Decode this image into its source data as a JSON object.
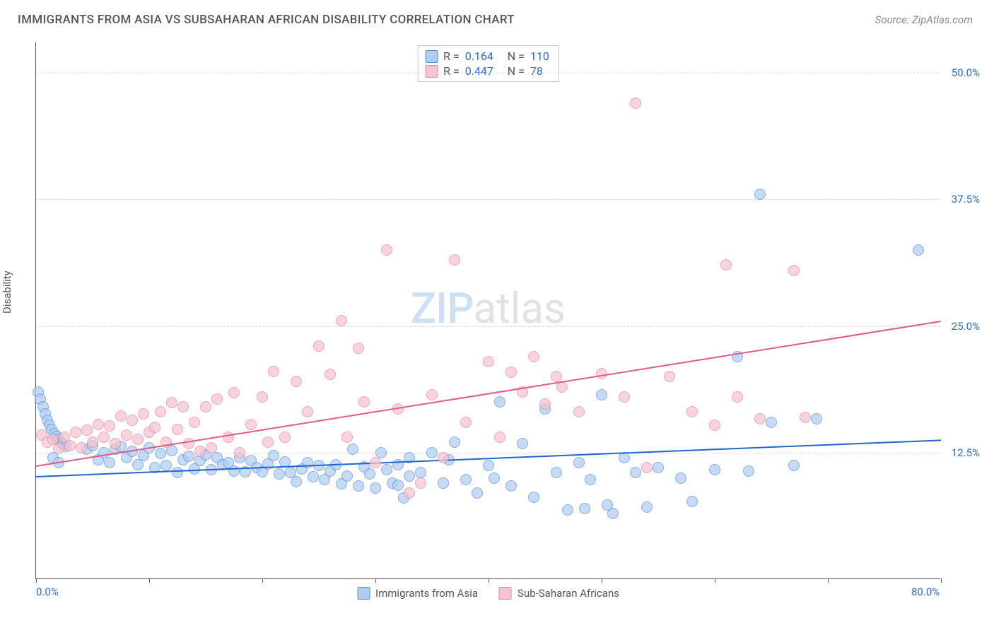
{
  "header": {
    "title": "IMMIGRANTS FROM ASIA VS SUBSAHARAN AFRICAN DISABILITY CORRELATION CHART",
    "source": "Source: ZipAtlas.com"
  },
  "chart": {
    "type": "scatter",
    "y_axis_label": "Disability",
    "watermark": {
      "part1": "ZIP",
      "part2": "atlas"
    },
    "background_color": "#ffffff",
    "grid_color": "#d8d8d8",
    "axis_color": "#555555",
    "label_color": "#2a6bd6",
    "xlim": [
      0,
      80
    ],
    "ylim": [
      0,
      53
    ],
    "x_ticks_minor": [
      0,
      10,
      20,
      30,
      40,
      50,
      60,
      70,
      80
    ],
    "x_tick_labels": [
      {
        "pos": 0,
        "label": "0.0%"
      },
      {
        "pos": 80,
        "label": "80.0%"
      }
    ],
    "y_gridlines": [
      12.5,
      25.0,
      37.5,
      50.0
    ],
    "y_tick_labels": [
      {
        "pos": 12.5,
        "label": "12.5%"
      },
      {
        "pos": 25.0,
        "label": "25.0%"
      },
      {
        "pos": 37.5,
        "label": "37.5%"
      },
      {
        "pos": 50.0,
        "label": "50.0%"
      }
    ],
    "series": [
      {
        "name": "Immigrants from Asia",
        "point_fill": "#b0cdf0",
        "point_stroke": "#5b8fd6",
        "point_opacity": 0.72,
        "point_radius": 8,
        "trend_color": "#1e66d0",
        "trend_y_start": 10.2,
        "trend_y_end": 13.8,
        "stats": {
          "R": "0.164",
          "N": "110"
        },
        "data": [
          [
            0.2,
            18.5
          ],
          [
            0.4,
            17.8
          ],
          [
            0.6,
            17.0
          ],
          [
            0.8,
            16.3
          ],
          [
            1.0,
            15.7
          ],
          [
            1.2,
            15.2
          ],
          [
            1.4,
            14.8
          ],
          [
            1.6,
            14.4
          ],
          [
            1.8,
            14.1
          ],
          [
            2.0,
            13.8
          ],
          [
            2.2,
            13.5
          ],
          [
            2.4,
            13.3
          ],
          [
            2.6,
            13.1
          ],
          [
            1.5,
            12.0
          ],
          [
            2.0,
            11.5
          ],
          [
            4.5,
            12.8
          ],
          [
            5.0,
            13.2
          ],
          [
            5.5,
            11.8
          ],
          [
            6.0,
            12.5
          ],
          [
            6.5,
            11.5
          ],
          [
            7.0,
            12.8
          ],
          [
            7.5,
            13.1
          ],
          [
            8.0,
            12.0
          ],
          [
            8.5,
            12.6
          ],
          [
            9.0,
            11.3
          ],
          [
            9.5,
            12.2
          ],
          [
            10.0,
            13.0
          ],
          [
            10.5,
            11.0
          ],
          [
            11.0,
            12.4
          ],
          [
            11.5,
            11.2
          ],
          [
            12.0,
            12.7
          ],
          [
            12.5,
            10.5
          ],
          [
            13.0,
            11.8
          ],
          [
            13.5,
            12.1
          ],
          [
            14.0,
            10.9
          ],
          [
            14.5,
            11.7
          ],
          [
            15.0,
            12.3
          ],
          [
            15.5,
            10.8
          ],
          [
            16.0,
            12.0
          ],
          [
            16.5,
            11.3
          ],
          [
            17.0,
            11.5
          ],
          [
            17.5,
            10.7
          ],
          [
            18.0,
            12.0
          ],
          [
            18.5,
            10.6
          ],
          [
            19.0,
            11.7
          ],
          [
            19.5,
            11.0
          ],
          [
            20.0,
            10.6
          ],
          [
            20.5,
            11.4
          ],
          [
            21.0,
            12.2
          ],
          [
            21.5,
            10.4
          ],
          [
            22.0,
            11.6
          ],
          [
            22.5,
            10.5
          ],
          [
            23.0,
            9.6
          ],
          [
            23.5,
            10.9
          ],
          [
            24.0,
            11.5
          ],
          [
            24.5,
            10.1
          ],
          [
            25.0,
            11.2
          ],
          [
            25.5,
            9.8
          ],
          [
            26.0,
            10.7
          ],
          [
            26.5,
            11.3
          ],
          [
            27.0,
            9.4
          ],
          [
            27.5,
            10.2
          ],
          [
            28.0,
            12.8
          ],
          [
            28.5,
            9.2
          ],
          [
            29.0,
            11.1
          ],
          [
            29.5,
            10.4
          ],
          [
            30.0,
            9.0
          ],
          [
            30.5,
            12.5
          ],
          [
            31.0,
            10.8
          ],
          [
            31.5,
            9.5
          ],
          [
            32.0,
            11.3
          ],
          [
            33.0,
            10.2
          ],
          [
            32.0,
            9.3
          ],
          [
            32.5,
            8.0
          ],
          [
            33.0,
            12.0
          ],
          [
            34.0,
            10.5
          ],
          [
            35.0,
            12.5
          ],
          [
            36.0,
            9.5
          ],
          [
            36.5,
            11.8
          ],
          [
            37.0,
            13.5
          ],
          [
            38.0,
            9.8
          ],
          [
            39.0,
            8.5
          ],
          [
            40.0,
            11.2
          ],
          [
            40.5,
            10.0
          ],
          [
            41.0,
            17.5
          ],
          [
            42.0,
            9.2
          ],
          [
            43.0,
            13.4
          ],
          [
            44.0,
            8.1
          ],
          [
            45.0,
            16.8
          ],
          [
            46.0,
            10.5
          ],
          [
            47.0,
            6.8
          ],
          [
            48.0,
            11.5
          ],
          [
            48.5,
            7.0
          ],
          [
            49.0,
            9.8
          ],
          [
            50.0,
            18.2
          ],
          [
            50.5,
            7.3
          ],
          [
            51.0,
            6.5
          ],
          [
            52.0,
            12.0
          ],
          [
            53.0,
            10.5
          ],
          [
            54.0,
            7.1
          ],
          [
            55.0,
            11.0
          ],
          [
            57.0,
            10.0
          ],
          [
            58.0,
            7.7
          ],
          [
            60.0,
            10.8
          ],
          [
            62.0,
            22.0
          ],
          [
            63.0,
            10.7
          ],
          [
            64.0,
            38.0
          ],
          [
            65.0,
            15.5
          ],
          [
            67.0,
            11.2
          ],
          [
            69.0,
            15.8
          ],
          [
            78.0,
            32.5
          ]
        ]
      },
      {
        "name": "Sub-Saharan Africans",
        "point_fill": "#f5c4d1",
        "point_stroke": "#e7839e",
        "point_opacity": 0.72,
        "point_radius": 8,
        "trend_color": "#e35a86",
        "trend_y_start": 11.2,
        "trend_y_end": 25.5,
        "stats": {
          "R": "0.447",
          "N": "78"
        },
        "data": [
          [
            0.5,
            14.2
          ],
          [
            1.0,
            13.5
          ],
          [
            1.5,
            13.8
          ],
          [
            2.0,
            12.9
          ],
          [
            2.5,
            14.0
          ],
          [
            3.0,
            13.2
          ],
          [
            3.5,
            14.5
          ],
          [
            4.0,
            13.0
          ],
          [
            4.5,
            14.7
          ],
          [
            5.0,
            13.5
          ],
          [
            5.5,
            15.3
          ],
          [
            6.0,
            14.0
          ],
          [
            6.5,
            15.1
          ],
          [
            7.0,
            13.4
          ],
          [
            7.5,
            16.1
          ],
          [
            8.0,
            14.2
          ],
          [
            8.5,
            15.7
          ],
          [
            9.0,
            13.8
          ],
          [
            9.5,
            16.3
          ],
          [
            10.0,
            14.5
          ],
          [
            10.5,
            15.0
          ],
          [
            11.0,
            16.5
          ],
          [
            11.5,
            13.5
          ],
          [
            12.0,
            17.4
          ],
          [
            12.5,
            14.8
          ],
          [
            13.0,
            17.0
          ],
          [
            13.5,
            13.4
          ],
          [
            14.0,
            15.5
          ],
          [
            14.5,
            12.6
          ],
          [
            15.0,
            17.0
          ],
          [
            15.5,
            13.0
          ],
          [
            16.0,
            17.8
          ],
          [
            17.0,
            14.0
          ],
          [
            17.5,
            18.4
          ],
          [
            18.0,
            12.5
          ],
          [
            19.0,
            15.3
          ],
          [
            20.0,
            18.0
          ],
          [
            20.5,
            13.5
          ],
          [
            21.0,
            20.5
          ],
          [
            22.0,
            14.0
          ],
          [
            23.0,
            19.5
          ],
          [
            24.0,
            16.5
          ],
          [
            25.0,
            23.0
          ],
          [
            26.0,
            20.2
          ],
          [
            27.0,
            25.5
          ],
          [
            27.5,
            14.0
          ],
          [
            28.5,
            22.8
          ],
          [
            29.0,
            17.5
          ],
          [
            30.0,
            11.5
          ],
          [
            31.0,
            32.5
          ],
          [
            32.0,
            16.8
          ],
          [
            33.0,
            8.5
          ],
          [
            34.0,
            9.5
          ],
          [
            35.0,
            18.2
          ],
          [
            36.0,
            12.0
          ],
          [
            37.0,
            31.5
          ],
          [
            38.0,
            15.5
          ],
          [
            40.0,
            21.5
          ],
          [
            41.0,
            14.0
          ],
          [
            42.0,
            20.4
          ],
          [
            43.0,
            18.5
          ],
          [
            44.0,
            22.0
          ],
          [
            45.0,
            17.3
          ],
          [
            46.0,
            20.0
          ],
          [
            46.5,
            19.0
          ],
          [
            48.0,
            16.5
          ],
          [
            50.0,
            20.3
          ],
          [
            52.0,
            18.0
          ],
          [
            53.0,
            47.0
          ],
          [
            54.0,
            11.0
          ],
          [
            56.0,
            20.0
          ],
          [
            58.0,
            16.5
          ],
          [
            60.0,
            15.2
          ],
          [
            61.0,
            31.0
          ],
          [
            62.0,
            18.0
          ],
          [
            64.0,
            15.8
          ],
          [
            67.0,
            30.5
          ],
          [
            68.0,
            16.0
          ]
        ]
      }
    ],
    "stats_legend": {
      "r_label": "R =",
      "n_label": "N ="
    },
    "bottom_legend_labels": [
      "Immigrants from Asia",
      "Sub-Saharan Africans"
    ]
  }
}
